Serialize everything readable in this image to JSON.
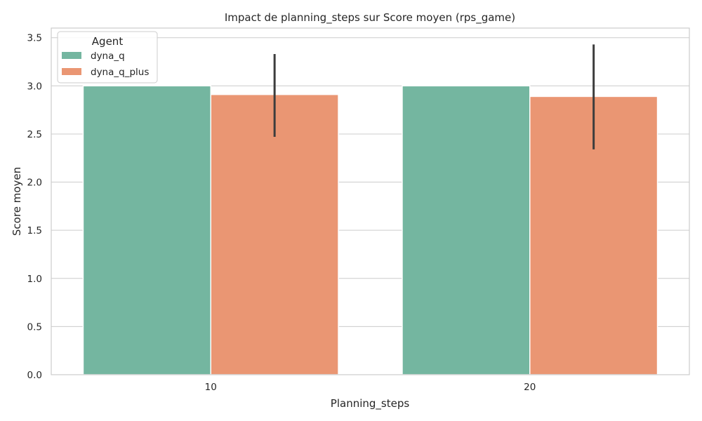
{
  "chart_data": {
    "type": "bar",
    "title": "Impact de planning_steps sur Score moyen (rps_game)",
    "xlabel": "Planning_steps",
    "ylabel": "Score moyen",
    "categories": [
      "10",
      "20"
    ],
    "ylim": [
      0,
      3.6
    ],
    "yticks": [
      0.0,
      0.5,
      1.0,
      1.5,
      2.0,
      2.5,
      3.0,
      3.5
    ],
    "ytick_labels": [
      "0.0",
      "0.5",
      "1.0",
      "1.5",
      "2.0",
      "2.5",
      "3.0",
      "3.5"
    ],
    "grid": true,
    "legend": {
      "title": "Agent",
      "placement": "top-left"
    },
    "series": [
      {
        "name": "dyna_q",
        "color": "#74b6a0",
        "values": [
          3.0,
          3.0
        ],
        "error_low": [
          null,
          null
        ],
        "error_high": [
          null,
          null
        ]
      },
      {
        "name": "dyna_q_plus",
        "color": "#ea9673",
        "values": [
          2.91,
          2.89
        ],
        "error_low": [
          2.47,
          2.34
        ],
        "error_high": [
          3.33,
          3.43
        ]
      }
    ]
  }
}
